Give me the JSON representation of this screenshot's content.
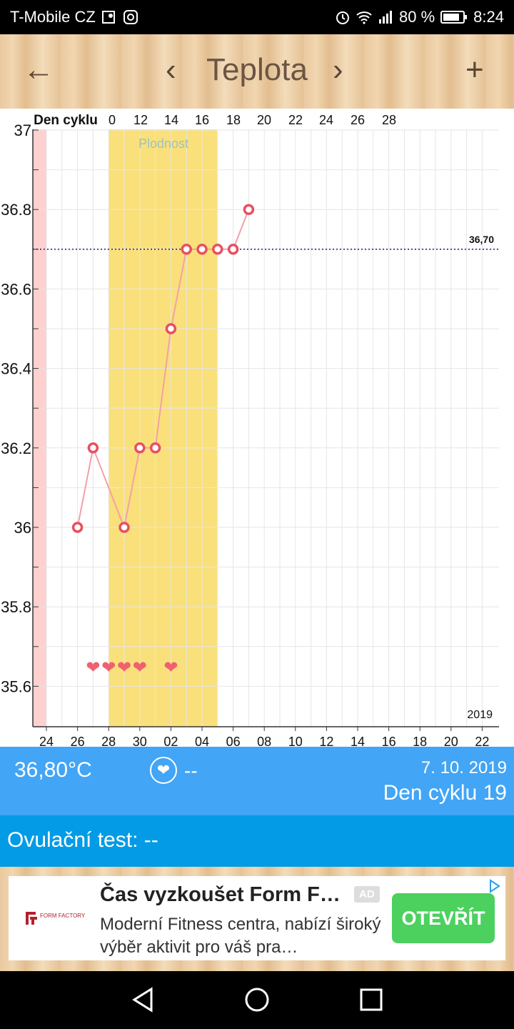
{
  "status": {
    "carrier": "T-Mobile CZ",
    "battery": "80 %",
    "time": "8:24",
    "icons": [
      "map-pin-icon",
      "instagram-icon",
      "alarm-icon",
      "wifi-icon",
      "signal-icon",
      "battery-icon"
    ]
  },
  "header": {
    "back_icon": "←",
    "prev_icon": "‹",
    "title": "Teplota",
    "next_icon": "›",
    "add_icon": "+"
  },
  "chart_data": {
    "type": "line",
    "top_axis_label": "Den cyklu",
    "top_ticks": [
      "0",
      "12",
      "14",
      "16",
      "18",
      "20",
      "22",
      "24",
      "26",
      "28"
    ],
    "bottom_ticks": [
      "24",
      "26",
      "28",
      "30",
      "02",
      "04",
      "06",
      "08",
      "10",
      "12",
      "14",
      "16",
      "18",
      "20",
      "22"
    ],
    "y_ticks": [
      "37",
      "36.8",
      "36.6",
      "36.4",
      "36.2",
      "36",
      "35.8",
      "35.6"
    ],
    "ylim": [
      35.5,
      37.0
    ],
    "fertile_label": "Plodnost",
    "year_label": "2019",
    "reference_line": {
      "value": 36.7,
      "label": "36,70"
    },
    "points": [
      {
        "x": "26",
        "y": 36.0
      },
      {
        "x": "27",
        "y": 36.2
      },
      {
        "x": "29",
        "y": 36.0
      },
      {
        "x": "30",
        "y": 36.2
      },
      {
        "x": "01",
        "y": 36.2
      },
      {
        "x": "02",
        "y": 36.5
      },
      {
        "x": "03",
        "y": 36.7
      },
      {
        "x": "04",
        "y": 36.7
      },
      {
        "x": "05",
        "y": 36.7
      },
      {
        "x": "06",
        "y": 36.7
      },
      {
        "x": "07",
        "y": 36.8
      }
    ],
    "hearts": [
      "27",
      "28",
      "29",
      "30",
      "02"
    ],
    "colors": {
      "line": "#f4a0a8",
      "marker": "#e8505f",
      "fertile": "#fae07a",
      "period": "#ffd0d0",
      "reference": "#1a1aa0",
      "heart": "#f06070"
    }
  },
  "info": {
    "temperature": "36,80°C",
    "heart_value": "--",
    "date": "7. 10. 2019",
    "cycle_day": "Den cyklu 19"
  },
  "ovulation": {
    "text": "Ovulační test: --"
  },
  "ad": {
    "logo_text": "FORM FACTORY",
    "title": "Čas vyzkoušet Form F…",
    "badge": "AD",
    "text": "Moderní Fitness centra, nabízí široký výběr aktivit pro váš pra…",
    "button": "OTEVŘÍT"
  }
}
